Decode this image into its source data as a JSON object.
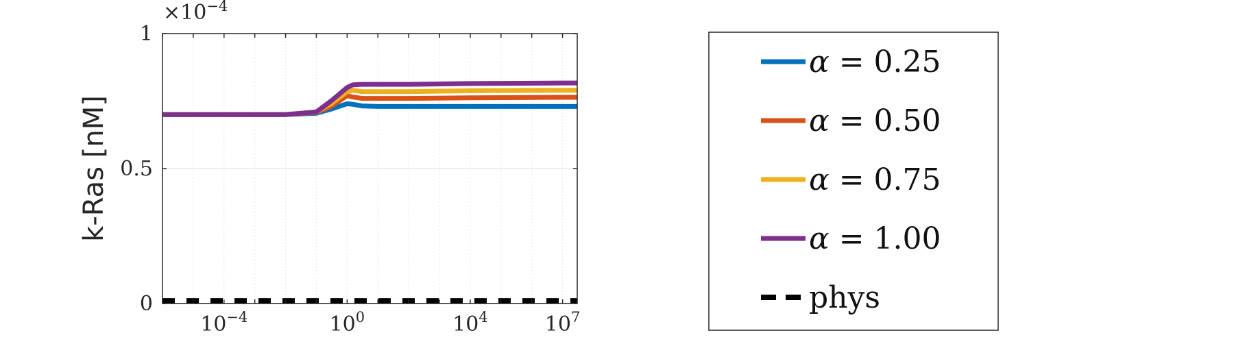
{
  "chart_data": {
    "type": "line",
    "title": "",
    "xlabel": "",
    "ylabel": "k-Ras [nM]",
    "x_scale": "log",
    "xlim": [
      1e-06,
      30000000.0
    ],
    "ylim": [
      0,
      0.0001
    ],
    "y_exponent_label": "×10",
    "y_exponent_power": "−4",
    "x_ticks": [
      {
        "base": "10",
        "power": "−4",
        "value": 0.0001
      },
      {
        "base": "10",
        "power": "0",
        "value": 1
      },
      {
        "base": "10",
        "power": "4",
        "value": 10000.0
      },
      {
        "base": "10",
        "power": "7",
        "value": 10000000.0
      }
    ],
    "y_ticks": [
      {
        "label": "0",
        "value": 0
      },
      {
        "label": "0.5",
        "value": 5e-05
      },
      {
        "label": "1",
        "value": 0.0001
      }
    ],
    "grid": true,
    "legend_position": "outside-right",
    "x": [
      1e-06,
      0.001,
      0.01,
      0.1,
      0.3,
      1,
      1.5,
      3,
      10,
      100,
      10000.0,
      10000000.0,
      30000000.0
    ],
    "series": [
      {
        "name": "α = 0.25",
        "label_symbol": "α",
        "label_value": " = 0.25",
        "color": "#0072BD",
        "dash": "solid",
        "values": [
          7e-05,
          7e-05,
          7e-05,
          7.05e-05,
          7.2e-05,
          7.4e-05,
          7.38e-05,
          7.32e-05,
          7.3e-05,
          7.3e-05,
          7.3e-05,
          7.3e-05,
          7.3e-05
        ]
      },
      {
        "name": "α = 0.50",
        "label_symbol": "α",
        "label_value": " = 0.50",
        "color": "#D95319",
        "dash": "solid",
        "values": [
          7e-05,
          7e-05,
          7e-05,
          7.08e-05,
          7.3e-05,
          7.7e-05,
          7.65e-05,
          7.6e-05,
          7.6e-05,
          7.6e-05,
          7.62e-05,
          7.64e-05,
          7.64e-05
        ]
      },
      {
        "name": "α = 0.75",
        "label_symbol": "α",
        "label_value": " = 0.75",
        "color": "#EDB120",
        "dash": "solid",
        "values": [
          7e-05,
          7e-05,
          7e-05,
          7.1e-05,
          7.4e-05,
          7.85e-05,
          7.9e-05,
          7.85e-05,
          7.85e-05,
          7.85e-05,
          7.88e-05,
          7.9e-05,
          7.9e-05
        ]
      },
      {
        "name": "α = 1.00",
        "label_symbol": "α",
        "label_value": " = 1.00",
        "color": "#7E2F8E",
        "dash": "solid",
        "values": [
          7e-05,
          7e-05,
          7e-05,
          7.1e-05,
          7.5e-05,
          8e-05,
          8.1e-05,
          8.12e-05,
          8.12e-05,
          8.12e-05,
          8.15e-05,
          8.17e-05,
          8.17e-05
        ]
      },
      {
        "name": "phys",
        "label_symbol": "",
        "label_value": "phys",
        "color": "#000000",
        "dash": "dashed",
        "values": [
          1e-06,
          1e-06,
          1e-06,
          1e-06,
          1e-06,
          1e-06,
          1e-06,
          1e-06,
          1e-06,
          1e-06,
          1e-06,
          1e-06,
          1e-06
        ]
      }
    ]
  }
}
